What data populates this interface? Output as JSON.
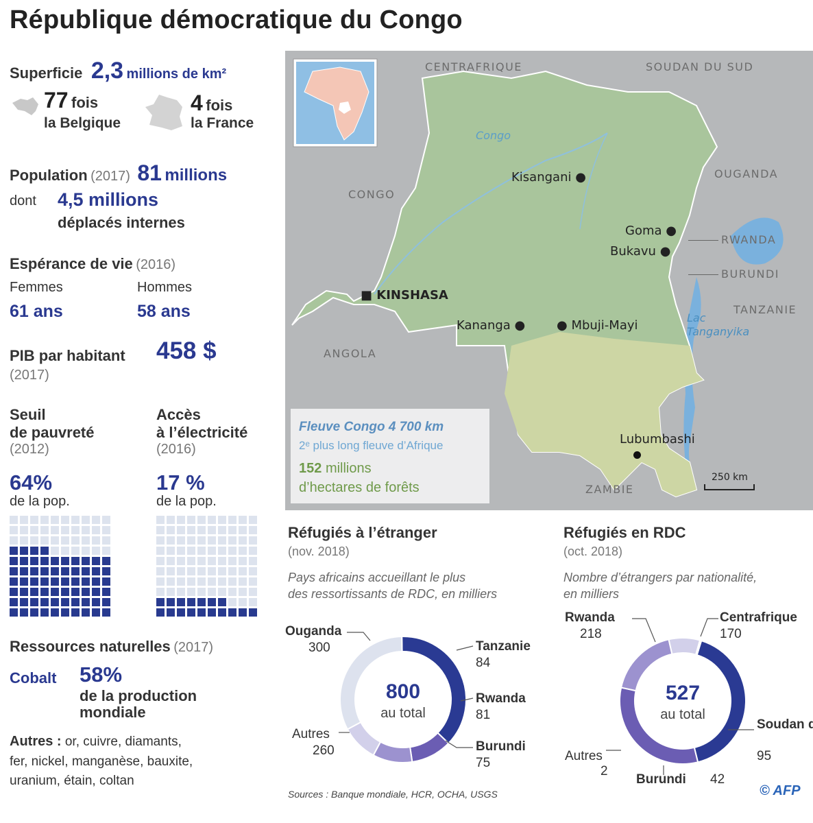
{
  "title": "République démocratique du Congo",
  "superficie": {
    "label": "Superficie",
    "value": "2,3",
    "unit": "millions de km²"
  },
  "comparisons": [
    {
      "num": "77",
      "word": "fois",
      "country": "la Belgique",
      "icon": "belgium-silhouette-icon"
    },
    {
      "num": "4",
      "word": "fois",
      "country": "la France",
      "icon": "france-silhouette-icon"
    }
  ],
  "population": {
    "label": "Population",
    "year": "(2017)",
    "value": "81",
    "unit": "millions",
    "dont": "dont",
    "displaced_value": "4,5 millions",
    "displaced_label": "déplacés internes"
  },
  "esperance": {
    "label": "Espérance de vie",
    "year": "(2016)",
    "femmes_label": "Femmes",
    "femmes_value": "61 ans",
    "hommes_label": "Hommes",
    "hommes_value": "58 ans"
  },
  "pib": {
    "label": "PIB par habitant",
    "value": "458 $",
    "year": "(2017)"
  },
  "pauvrete": {
    "line1": "Seuil",
    "line2": "de pauvreté",
    "year": "(2012)",
    "value": "64%",
    "sub": "de la pop."
  },
  "electricite": {
    "line1": "Accès",
    "line2": "à l’électricité",
    "year": "(2016)",
    "value": "17 %",
    "sub": "de la pop."
  },
  "ressources": {
    "label": "Ressources naturelles",
    "year": "(2017)",
    "cobalt_label": "Cobalt",
    "cobalt_value": "58%",
    "cobalt_sub1": "de la production",
    "cobalt_sub2": "mondiale",
    "autres_label": "Autres :",
    "autres_line1": "or, cuivre, diamants,",
    "autres_line2": "fer, nickel, manganèse, bauxite,",
    "autres_line3": "uranium, étain, coltan"
  },
  "map": {
    "neighbors": {
      "centrafrique": "CENTRAFRIQUE",
      "soudan_sud": "SOUDAN DU SUD",
      "ouganda": "OUGANDA",
      "congo": "CONGO",
      "rwanda": "RWANDA",
      "burundi": "BURUNDI",
      "tanzanie": "TANZANIE",
      "angola": "ANGOLA",
      "zambie": "ZAMBIE"
    },
    "cities": {
      "kisangani": "Kisangani",
      "goma": "Goma",
      "bukavu": "Bukavu",
      "kinshasa": "KINSHASA",
      "kananga": "Kananga",
      "mbuji": "Mbuji-Mayi",
      "lubumbashi": "Lubumbashi"
    },
    "river": "Congo",
    "lake1": "Lac",
    "lake2": "Tanganyika",
    "scale": "250 km",
    "info": {
      "river_title": "Fleuve Congo 4 700 km",
      "river_sub": "2ᵉ plus long fleuve d’Afrique",
      "forest_value": "152",
      "forest_unit": "millions",
      "forest_sub": "d’hectares de forêts"
    }
  },
  "refugees_abroad": {
    "title": "Réfugiés à l’étranger",
    "date": "(nov. 2018)",
    "desc1": "Pays africains accueillant le plus",
    "desc2": "des ressortissants de RDC, en milliers",
    "total": "800",
    "total_label": "au total"
  },
  "refugees_rdc": {
    "title": "Réfugiés en RDC",
    "date": "(oct. 2018)",
    "desc1": "Nombre d’étrangers par nationalité,",
    "desc2": "en milliers",
    "total": "527",
    "total_label": "au total"
  },
  "sources": "Sources : Banque mondiale, HCR, OCHA, USGS",
  "credit": "© AFP",
  "colors": {
    "navy": "#2a3990",
    "donut1": "#2a3a93",
    "donut2": "#6b5db3",
    "donut3": "#9c92cf",
    "donut4": "#d2d0ea",
    "donut5": "#dde2ee"
  },
  "chart_data": [
    {
      "type": "bar",
      "title": "Seuil de pauvreté",
      "values": [
        64
      ],
      "unit": "% de la pop."
    },
    {
      "type": "bar",
      "title": "Accès à l’électricité",
      "values": [
        17
      ],
      "unit": "% de la pop."
    },
    {
      "type": "pie",
      "title": "Réfugiés à l’étranger",
      "categories": [
        "Ouganda",
        "Tanzanie",
        "Rwanda",
        "Burundi",
        "Autres"
      ],
      "values": [
        300,
        84,
        81,
        75,
        260
      ]
    },
    {
      "type": "pie",
      "title": "Réfugiés en RDC",
      "categories": [
        "Rwanda",
        "Centrafrique",
        "Soudan du Sud",
        "Burundi",
        "Autres"
      ],
      "values": [
        218,
        170,
        95,
        42,
        2
      ]
    }
  ]
}
